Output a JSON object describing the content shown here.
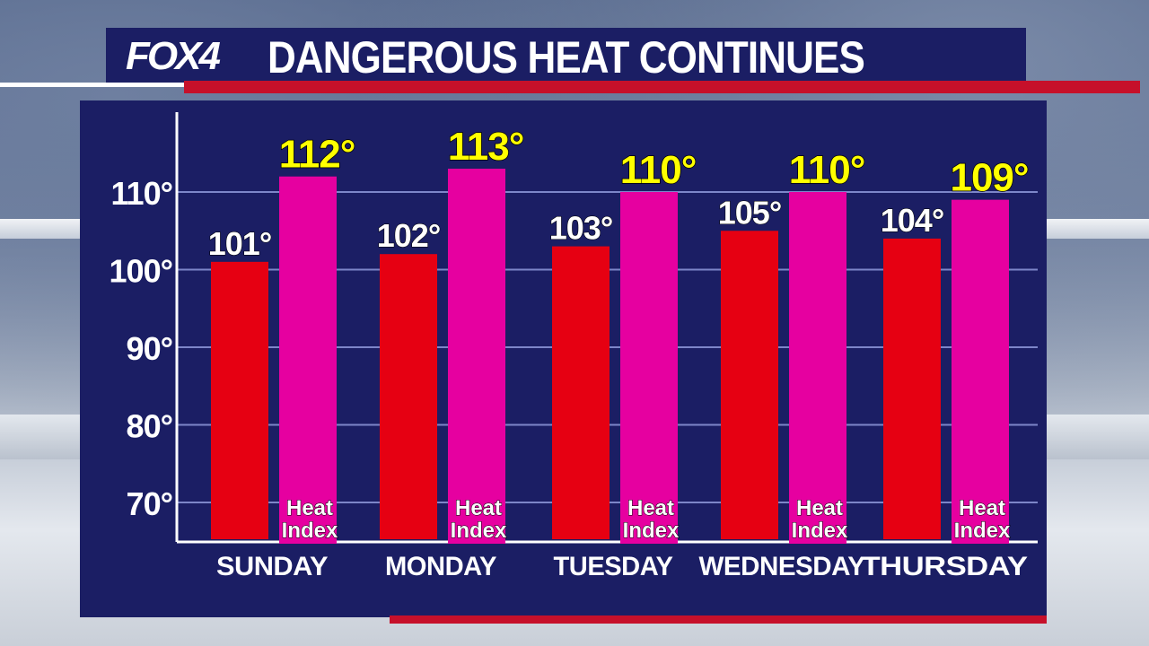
{
  "header": {
    "logo_text": "FOX4",
    "title": "DANGEROUS HEAT CONTINUES"
  },
  "colors": {
    "panel": "#1b1e64",
    "temp_bar": "#e60012",
    "heat_bar": "#e600a0",
    "heat_label": "#ffff00",
    "accent_red": "#c6102a"
  },
  "chart_data": {
    "type": "bar",
    "categories": [
      "SUNDAY",
      "MONDAY",
      "TUESDAY",
      "WEDNESDAY",
      "THURSDAY"
    ],
    "series": [
      {
        "values": [
          101,
          102,
          103,
          105,
          104
        ],
        "labels": [
          "101°",
          "102°",
          "103°",
          "105°",
          "104°"
        ]
      },
      {
        "name": "Heat Index",
        "values": [
          112,
          113,
          110,
          110,
          109
        ],
        "labels": [
          "112°",
          "113°",
          "110°",
          "110°",
          "109°"
        ]
      }
    ],
    "yticks": [
      "70°",
      "80°",
      "90°",
      "100°",
      "110°"
    ],
    "ytick_values": [
      70,
      80,
      90,
      100,
      110
    ],
    "ylim": [
      65,
      120
    ],
    "grid": true
  }
}
